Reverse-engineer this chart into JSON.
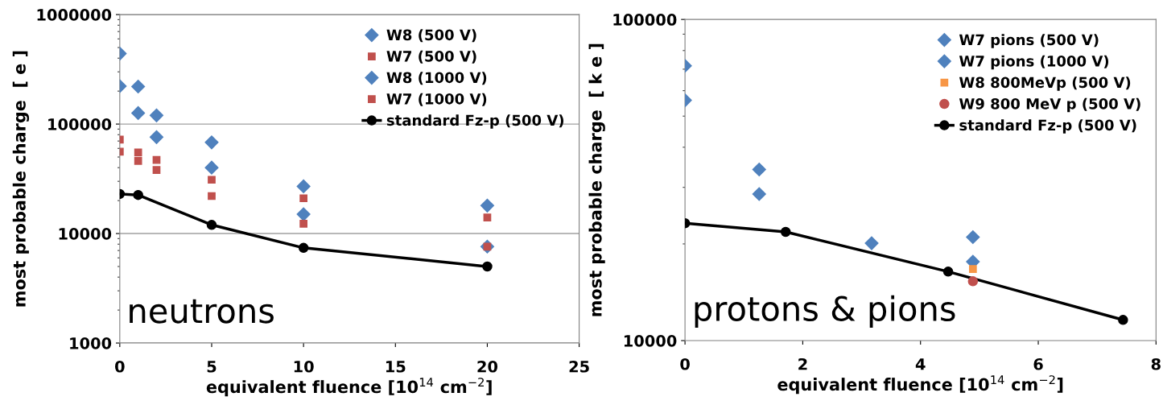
{
  "chart_data": [
    {
      "type": "scatter",
      "xlabel": "equivalent fluence [10$^{14}$ cm$^{−2}$]",
      "ylabel": "most probable charge  [ e ]",
      "log": "y",
      "xlim": [
        0,
        25
      ],
      "xticks": [
        0,
        5,
        10,
        15,
        20,
        25
      ],
      "ylim": [
        1000,
        1000000
      ],
      "yticks": [
        1000,
        10000,
        100000,
        1000000
      ],
      "grid": "y",
      "legend": "top right",
      "annotations": [
        "neutrons"
      ],
      "series": [
        {
          "name": "W8 (500 V)",
          "color": "#4f81bd",
          "marker": "diamond",
          "x": [
            0,
            1,
            2,
            5,
            10,
            20
          ],
          "values": [
            222000,
            126000,
            76000,
            40000,
            15000,
            7600
          ]
        },
        {
          "name": "W7 (500 V)",
          "color": "#c0504d",
          "marker": "square",
          "x": [
            0,
            1,
            2,
            5,
            10,
            20
          ],
          "values": [
            56000,
            46000,
            38000,
            22000,
            12300,
            7600
          ]
        },
        {
          "name": "W8 (1000 V)",
          "color": "#4f81bd",
          "marker": "diamond",
          "x": [
            0,
            1,
            2,
            5,
            10,
            20
          ],
          "values": [
            440000,
            220000,
            120000,
            68000,
            27000,
            18000
          ]
        },
        {
          "name": "W7 (1000 V)",
          "color": "#c0504d",
          "marker": "square",
          "x": [
            0,
            1,
            2,
            5,
            10,
            20
          ],
          "values": [
            72000,
            55000,
            47000,
            31000,
            21000,
            14000
          ]
        },
        {
          "name": "standard Fz-p (500 V)",
          "type": "line",
          "color": "#000000",
          "marker": "circle",
          "x": [
            0,
            1,
            5,
            10,
            20
          ],
          "values": [
            23000,
            22500,
            12000,
            7400,
            5000
          ]
        }
      ]
    },
    {
      "type": "scatter",
      "xlabel": "equivalent fluence [10$^{14}$ cm$^{−2}$]",
      "ylabel": "most probable charge  [ k e ]",
      "log": "y",
      "xlim": [
        0,
        8
      ],
      "xticks": [
        0,
        2,
        4,
        6,
        8
      ],
      "ylim": [
        10000,
        100000
      ],
      "yticks": [
        10000,
        100000
      ],
      "legend": "top right",
      "annotations": [
        "protons & pions"
      ],
      "series": [
        {
          "name": "W7 pions (500 V)",
          "color": "#4f81bd",
          "marker": "diamond",
          "x": [
            0,
            1.26,
            3.17,
            4.89
          ],
          "values": [
            56000,
            28600,
            20100,
            17600
          ]
        },
        {
          "name": "W7 pions (1000 V)",
          "color": "#4f81bd",
          "marker": "diamond",
          "x": [
            0,
            1.26,
            4.89
          ],
          "values": [
            71700,
            34100,
            21000
          ]
        },
        {
          "name": "W8 800MeVp (500 V)",
          "color": "#f79646",
          "marker": "square",
          "x": [
            4.89
          ],
          "values": [
            16700
          ]
        },
        {
          "name": "W9 800 MeV p (500 V)",
          "color": "#c0504d",
          "marker": "circle",
          "x": [
            4.89
          ],
          "values": [
            15300
          ]
        },
        {
          "name": "standard Fz-p (500 V)",
          "type": "line",
          "color": "#000000",
          "marker": "circle",
          "x": [
            0,
            1.71,
            4.47,
            7.44
          ],
          "values": [
            23200,
            21800,
            16400,
            11600
          ]
        }
      ]
    }
  ]
}
